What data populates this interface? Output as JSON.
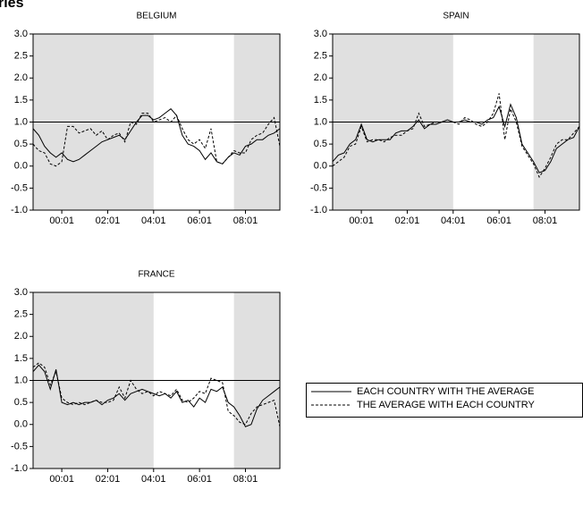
{
  "page_title": "ries",
  "legend": [
    {
      "label": "EACH COUNTRY WITH THE AVERAGE",
      "line_style": "solid",
      "color": "#000000"
    },
    {
      "label": "THE AVERAGE WITH EACH COUNTRY",
      "line_style": "dashed",
      "color": "#000000"
    }
  ],
  "chart_data": [
    {
      "type": "line",
      "title": "BELGIUM",
      "x": [
        "98:10",
        "99:01",
        "99:04",
        "99:07",
        "99:10",
        "00:01",
        "00:04",
        "00:07",
        "00:10",
        "01:01",
        "01:04",
        "01:07",
        "01:10",
        "02:01",
        "02:04",
        "02:07",
        "02:10",
        "03:01",
        "03:04",
        "03:07",
        "03:10",
        "04:01",
        "04:04",
        "04:07",
        "04:10",
        "05:01",
        "05:04",
        "05:07",
        "05:10",
        "06:01",
        "06:04",
        "06:07",
        "06:10",
        "07:01",
        "07:04",
        "07:07",
        "07:10",
        "08:01",
        "08:04",
        "08:07",
        "08:10",
        "09:01",
        "09:04",
        "09:07"
      ],
      "series": [
        {
          "line_style": "solid",
          "color": "#000000",
          "values": [
            0.85,
            0.7,
            0.45,
            0.3,
            0.2,
            0.3,
            0.15,
            0.1,
            0.15,
            0.25,
            0.35,
            0.45,
            0.55,
            0.6,
            0.65,
            0.7,
            0.6,
            0.8,
            1.0,
            1.15,
            1.15,
            1.05,
            1.1,
            1.2,
            1.3,
            1.15,
            0.7,
            0.5,
            0.45,
            0.35,
            0.15,
            0.3,
            0.1,
            0.05,
            0.2,
            0.3,
            0.25,
            0.45,
            0.5,
            0.6,
            0.6,
            0.7,
            0.75,
            0.85
          ]
        },
        {
          "line_style": "dashed",
          "color": "#000000",
          "values": [
            0.5,
            0.35,
            0.3,
            0.05,
            0.0,
            0.1,
            0.9,
            0.9,
            0.75,
            0.8,
            0.85,
            0.7,
            0.8,
            0.6,
            0.7,
            0.75,
            0.55,
            1.0,
            0.95,
            1.2,
            1.2,
            1.0,
            1.05,
            1.1,
            1.0,
            1.15,
            0.85,
            0.6,
            0.5,
            0.6,
            0.4,
            0.85,
            0.1,
            0.05,
            0.2,
            0.35,
            0.3,
            0.3,
            0.6,
            0.7,
            0.75,
            0.95,
            1.1,
            0.45
          ]
        }
      ],
      "xticks": [
        "00:01",
        "02:01",
        "04:01",
        "06:01",
        "08:01"
      ],
      "ylim": [
        -1,
        3
      ],
      "yticks": [
        {
          "value": -1,
          "label": "-1.0"
        },
        -0.5,
        {
          "value": 0,
          "label": "0.0"
        },
        0.5,
        {
          "value": 1,
          "label": "1.0"
        },
        1.5,
        {
          "value": 2,
          "label": "2.0"
        },
        2.5,
        {
          "value": 3,
          "label": "3.0"
        }
      ],
      "reference_line": 1,
      "shaded_periods": [
        [
          "98:10",
          "04:01"
        ],
        [
          "07:07",
          "09:07"
        ]
      ],
      "shade_color": "#e0e0e0"
    },
    {
      "type": "line",
      "title": "SPAIN",
      "x": [
        "98:10",
        "99:01",
        "99:04",
        "99:07",
        "99:10",
        "00:01",
        "00:04",
        "00:07",
        "00:10",
        "01:01",
        "01:04",
        "01:07",
        "01:10",
        "02:01",
        "02:04",
        "02:07",
        "02:10",
        "03:01",
        "03:04",
        "03:07",
        "03:10",
        "04:01",
        "04:04",
        "04:07",
        "04:10",
        "05:01",
        "05:04",
        "05:07",
        "05:10",
        "06:01",
        "06:04",
        "06:07",
        "06:10",
        "07:01",
        "07:04",
        "07:07",
        "07:10",
        "08:01",
        "08:04",
        "08:07",
        "08:10",
        "09:01",
        "09:04",
        "09:07"
      ],
      "series": [
        {
          "line_style": "solid",
          "color": "#000000",
          "values": [
            0.1,
            0.25,
            0.3,
            0.5,
            0.6,
            0.95,
            0.6,
            0.55,
            0.6,
            0.6,
            0.6,
            0.75,
            0.8,
            0.8,
            0.9,
            1.05,
            0.85,
            0.95,
            0.95,
            1.0,
            1.05,
            1.0,
            1.0,
            1.05,
            1.0,
            1.0,
            0.95,
            1.05,
            1.1,
            1.35,
            0.9,
            1.4,
            1.1,
            0.5,
            0.3,
            0.1,
            -0.15,
            -0.1,
            0.1,
            0.4,
            0.5,
            0.6,
            0.65,
            0.9
          ]
        },
        {
          "line_style": "dashed",
          "color": "#000000",
          "values": [
            0.0,
            0.1,
            0.2,
            0.45,
            0.5,
            0.9,
            0.55,
            0.6,
            0.6,
            0.55,
            0.65,
            0.7,
            0.7,
            0.8,
            0.85,
            1.2,
            0.9,
            0.95,
            1.0,
            1.0,
            1.0,
            1.0,
            0.95,
            1.1,
            1.05,
            0.95,
            0.9,
            1.0,
            1.2,
            1.65,
            0.6,
            1.3,
            1.0,
            0.45,
            0.25,
            0.05,
            -0.25,
            -0.05,
            0.2,
            0.5,
            0.6,
            0.6,
            0.75,
            0.9
          ]
        }
      ],
      "xticks": [
        "00:01",
        "02:01",
        "04:01",
        "06:01",
        "08:01"
      ],
      "ylim": [
        -1,
        3
      ],
      "yticks": [
        {
          "value": -1,
          "label": "-1.0"
        },
        -0.5,
        {
          "value": 0,
          "label": "0.0"
        },
        0.5,
        {
          "value": 1,
          "label": "1.0"
        },
        1.5,
        {
          "value": 2,
          "label": "2.0"
        },
        2.5,
        {
          "value": 3,
          "label": "3.0"
        }
      ],
      "reference_line": 1,
      "shaded_periods": [
        [
          "98:10",
          "04:01"
        ],
        [
          "07:07",
          "09:07"
        ]
      ],
      "shade_color": "#e0e0e0"
    },
    {
      "type": "line",
      "title": "FRANCE",
      "x": [
        "98:10",
        "99:01",
        "99:04",
        "99:07",
        "99:10",
        "00:01",
        "00:04",
        "00:07",
        "00:10",
        "01:01",
        "01:04",
        "01:07",
        "01:10",
        "02:01",
        "02:04",
        "02:07",
        "02:10",
        "03:01",
        "03:04",
        "03:07",
        "03:10",
        "04:01",
        "04:04",
        "04:07",
        "04:10",
        "05:01",
        "05:04",
        "05:07",
        "05:10",
        "06:01",
        "06:04",
        "06:07",
        "06:10",
        "07:01",
        "07:04",
        "07:07",
        "07:10",
        "08:01",
        "08:04",
        "08:07",
        "08:10",
        "09:01",
        "09:04",
        "09:07"
      ],
      "series": [
        {
          "line_style": "solid",
          "color": "#000000",
          "values": [
            1.2,
            1.35,
            1.2,
            0.8,
            1.25,
            0.5,
            0.45,
            0.5,
            0.45,
            0.5,
            0.5,
            0.55,
            0.45,
            0.55,
            0.6,
            0.7,
            0.55,
            0.7,
            0.75,
            0.8,
            0.75,
            0.7,
            0.65,
            0.7,
            0.6,
            0.75,
            0.5,
            0.55,
            0.4,
            0.6,
            0.5,
            0.8,
            0.75,
            0.85,
            0.5,
            0.4,
            0.2,
            -0.05,
            0.0,
            0.35,
            0.55,
            0.65,
            0.75,
            0.85
          ]
        },
        {
          "line_style": "dashed",
          "color": "#000000",
          "values": [
            1.3,
            1.4,
            1.3,
            0.9,
            1.2,
            0.6,
            0.5,
            0.45,
            0.5,
            0.45,
            0.5,
            0.55,
            0.5,
            0.5,
            0.55,
            0.85,
            0.6,
            1.0,
            0.8,
            0.7,
            0.75,
            0.65,
            0.75,
            0.7,
            0.65,
            0.8,
            0.55,
            0.5,
            0.6,
            0.75,
            0.7,
            1.05,
            1.0,
            0.95,
            0.3,
            0.2,
            0.05,
            0.0,
            0.25,
            0.4,
            0.45,
            0.5,
            0.55,
            -0.05
          ]
        }
      ],
      "xticks": [
        "00:01",
        "02:01",
        "04:01",
        "06:01",
        "08:01"
      ],
      "ylim": [
        -1,
        3
      ],
      "yticks": [
        {
          "value": -1,
          "label": "-1.0"
        },
        -0.5,
        {
          "value": 0,
          "label": "0.0"
        },
        0.5,
        {
          "value": 1,
          "label": "1.0"
        },
        1.5,
        {
          "value": 2,
          "label": "2.0"
        },
        2.5,
        {
          "value": 3,
          "label": "3.0"
        }
      ],
      "reference_line": 1,
      "shaded_periods": [
        [
          "98:10",
          "04:01"
        ],
        [
          "07:07",
          "09:07"
        ]
      ],
      "shade_color": "#e0e0e0"
    }
  ]
}
